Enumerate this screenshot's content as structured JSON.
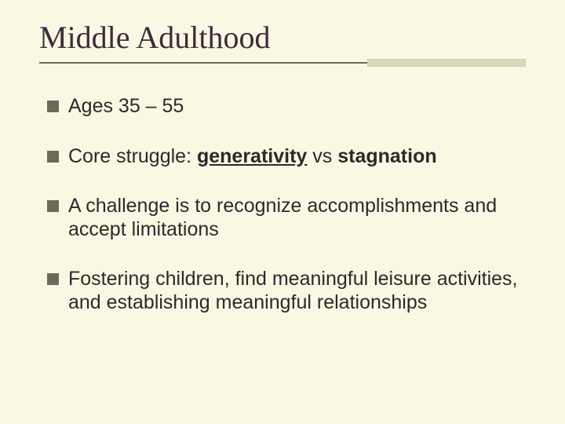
{
  "slide": {
    "background_color": "#f9f8e3",
    "title": {
      "text": "Middle Adulthood",
      "font_family": "Times New Roman",
      "font_size": 40,
      "color": "#3f2a3a"
    },
    "rule": {
      "left_color": "#6b6b5a",
      "left_width": 418,
      "right_color": "#d8d7b7",
      "right_height": 10
    },
    "bullets": {
      "marker_color": "#6b6b5a",
      "marker_size": 15,
      "font_size": 25,
      "text_color": "#2a2a2a",
      "items": [
        {
          "segments": [
            {
              "text": "Ages 35 – 55",
              "bold": false,
              "underline": false
            }
          ]
        },
        {
          "segments": [
            {
              "text": "Core struggle: ",
              "bold": false,
              "underline": false
            },
            {
              "text": "generativity",
              "bold": true,
              "underline": true
            },
            {
              "text": " vs ",
              "bold": false,
              "underline": false
            },
            {
              "text": "stagnation",
              "bold": true,
              "underline": false
            }
          ]
        },
        {
          "segments": [
            {
              "text": "A challenge is to recognize accomplishments and accept limitations",
              "bold": false,
              "underline": false
            }
          ]
        },
        {
          "segments": [
            {
              "text": "Fostering children, find meaningful leisure activities,  and establishing meaningful relationships",
              "bold": false,
              "underline": false
            }
          ]
        }
      ]
    }
  }
}
